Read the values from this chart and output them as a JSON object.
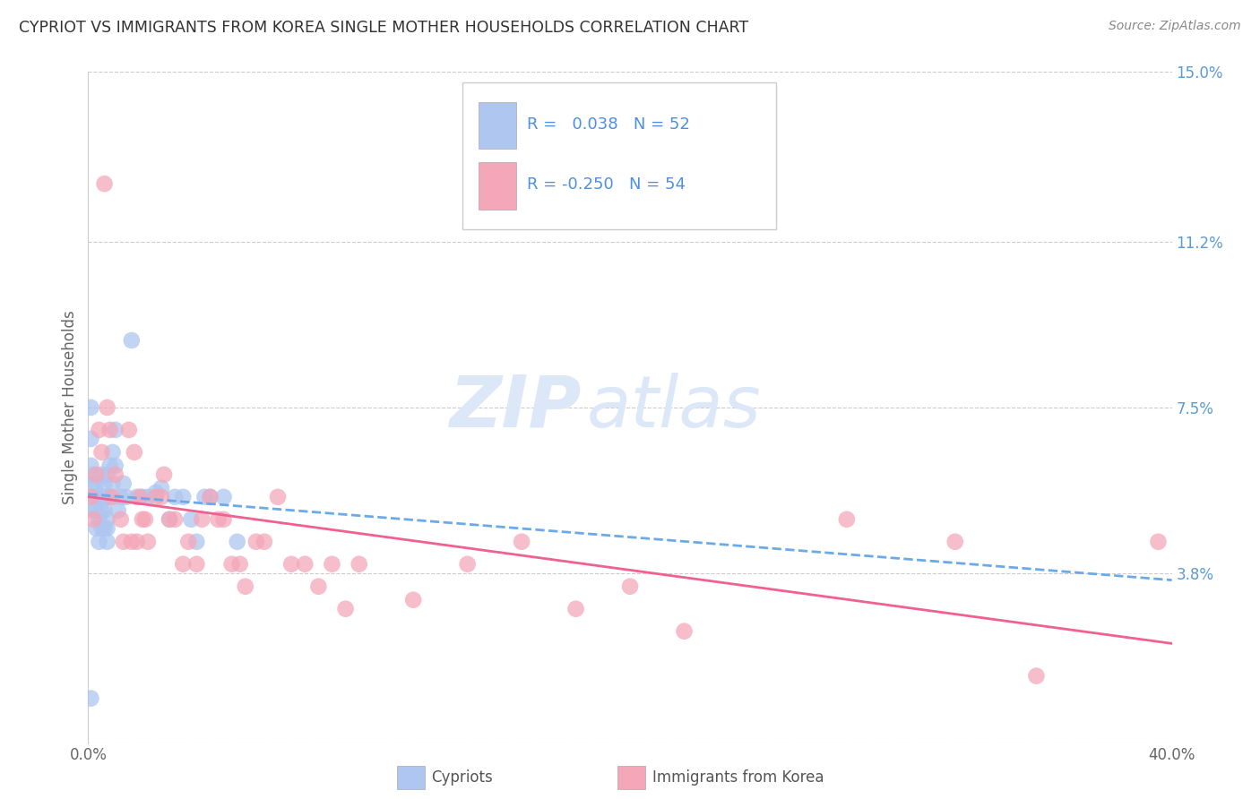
{
  "title": "CYPRIOT VS IMMIGRANTS FROM KOREA SINGLE MOTHER HOUSEHOLDS CORRELATION CHART",
  "source": "Source: ZipAtlas.com",
  "ylabel": "Single Mother Households",
  "xmin": 0.0,
  "xmax": 0.4,
  "ymin": 0.0,
  "ymax": 0.15,
  "yticks": [
    0.0,
    0.038,
    0.075,
    0.112,
    0.15
  ],
  "ytick_labels": [
    "",
    "3.8%",
    "7.5%",
    "11.2%",
    "15.0%"
  ],
  "xtick_positions": [
    0.0,
    0.4
  ],
  "xtick_labels": [
    "0.0%",
    "40.0%"
  ],
  "grid_color": "#cccccc",
  "background_color": "#ffffff",
  "cypriot_color": "#aec6f0",
  "korea_color": "#f4a7b9",
  "trend_cypriot_color": "#6aaae8",
  "trend_korea_color": "#f06090",
  "legend_R_cypriot": " 0.038",
  "legend_N_cypriot": "52",
  "legend_R_korea": "-0.250",
  "legend_N_korea": "54",
  "cypriot_x": [
    0.001,
    0.001,
    0.001,
    0.002,
    0.002,
    0.002,
    0.002,
    0.003,
    0.003,
    0.003,
    0.003,
    0.004,
    0.004,
    0.004,
    0.005,
    0.005,
    0.005,
    0.005,
    0.006,
    0.006,
    0.006,
    0.007,
    0.007,
    0.007,
    0.007,
    0.007,
    0.008,
    0.008,
    0.009,
    0.009,
    0.01,
    0.01,
    0.011,
    0.012,
    0.013,
    0.014,
    0.016,
    0.018,
    0.02,
    0.022,
    0.025,
    0.027,
    0.03,
    0.032,
    0.035,
    0.038,
    0.04,
    0.043,
    0.045,
    0.05,
    0.055,
    0.001
  ],
  "cypriot_y": [
    0.075,
    0.068,
    0.062,
    0.06,
    0.058,
    0.055,
    0.052,
    0.058,
    0.055,
    0.052,
    0.048,
    0.055,
    0.05,
    0.045,
    0.06,
    0.055,
    0.052,
    0.048,
    0.058,
    0.052,
    0.048,
    0.06,
    0.055,
    0.05,
    0.048,
    0.045,
    0.062,
    0.055,
    0.065,
    0.058,
    0.07,
    0.062,
    0.052,
    0.055,
    0.058,
    0.055,
    0.09,
    0.055,
    0.055,
    0.055,
    0.056,
    0.057,
    0.05,
    0.055,
    0.055,
    0.05,
    0.045,
    0.055,
    0.055,
    0.055,
    0.045,
    0.01
  ],
  "korea_x": [
    0.001,
    0.002,
    0.003,
    0.004,
    0.005,
    0.006,
    0.007,
    0.008,
    0.009,
    0.01,
    0.012,
    0.013,
    0.015,
    0.016,
    0.017,
    0.018,
    0.019,
    0.02,
    0.021,
    0.022,
    0.025,
    0.027,
    0.028,
    0.03,
    0.032,
    0.035,
    0.037,
    0.04,
    0.042,
    0.045,
    0.048,
    0.05,
    0.053,
    0.056,
    0.058,
    0.062,
    0.065,
    0.07,
    0.075,
    0.08,
    0.085,
    0.09,
    0.095,
    0.1,
    0.12,
    0.14,
    0.16,
    0.18,
    0.2,
    0.22,
    0.28,
    0.32,
    0.35,
    0.395
  ],
  "korea_y": [
    0.055,
    0.05,
    0.06,
    0.07,
    0.065,
    0.125,
    0.075,
    0.07,
    0.055,
    0.06,
    0.05,
    0.045,
    0.07,
    0.045,
    0.065,
    0.045,
    0.055,
    0.05,
    0.05,
    0.045,
    0.055,
    0.055,
    0.06,
    0.05,
    0.05,
    0.04,
    0.045,
    0.04,
    0.05,
    0.055,
    0.05,
    0.05,
    0.04,
    0.04,
    0.035,
    0.045,
    0.045,
    0.055,
    0.04,
    0.04,
    0.035,
    0.04,
    0.03,
    0.04,
    0.032,
    0.04,
    0.045,
    0.03,
    0.035,
    0.025,
    0.05,
    0.045,
    0.015,
    0.045
  ],
  "watermark_zip": "ZIP",
  "watermark_atlas": "atlas",
  "watermark_color": "#dce8f8"
}
